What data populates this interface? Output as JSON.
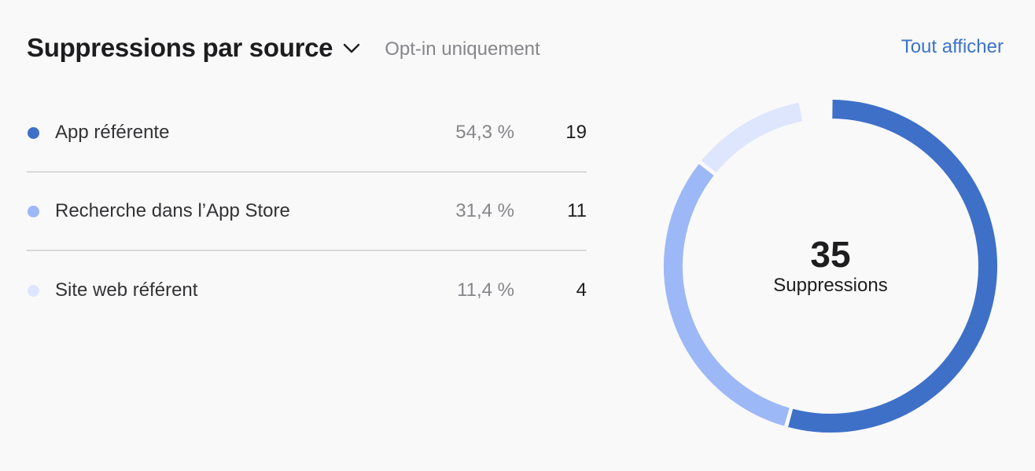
{
  "header": {
    "title": "Suppressions par source",
    "subtitle": "Opt-in uniquement",
    "see_all": "Tout afficher"
  },
  "legend": {
    "items": [
      {
        "label": "App référente",
        "percent": "54,3 %",
        "count": "19",
        "color": "#3e70c8"
      },
      {
        "label": "Recherche dans l’App Store",
        "percent": "31,4 %",
        "count": "11",
        "color": "#9db8f7"
      },
      {
        "label": "Site web référent",
        "percent": "11,4 %",
        "count": "4",
        "color": "#dde6fd"
      }
    ]
  },
  "center": {
    "total": "35",
    "label": "Suppressions"
  },
  "chart_data": {
    "type": "pie",
    "style": "donut",
    "title": "Suppressions par source",
    "categories": [
      "App référente",
      "Recherche dans l’App Store",
      "Site web référent"
    ],
    "values": [
      19,
      11,
      4
    ],
    "percent": [
      54.3,
      31.4,
      11.4
    ],
    "colors": [
      "#3e70c8",
      "#9db8f7",
      "#dde6fd"
    ],
    "total": 35,
    "legend": "left"
  }
}
